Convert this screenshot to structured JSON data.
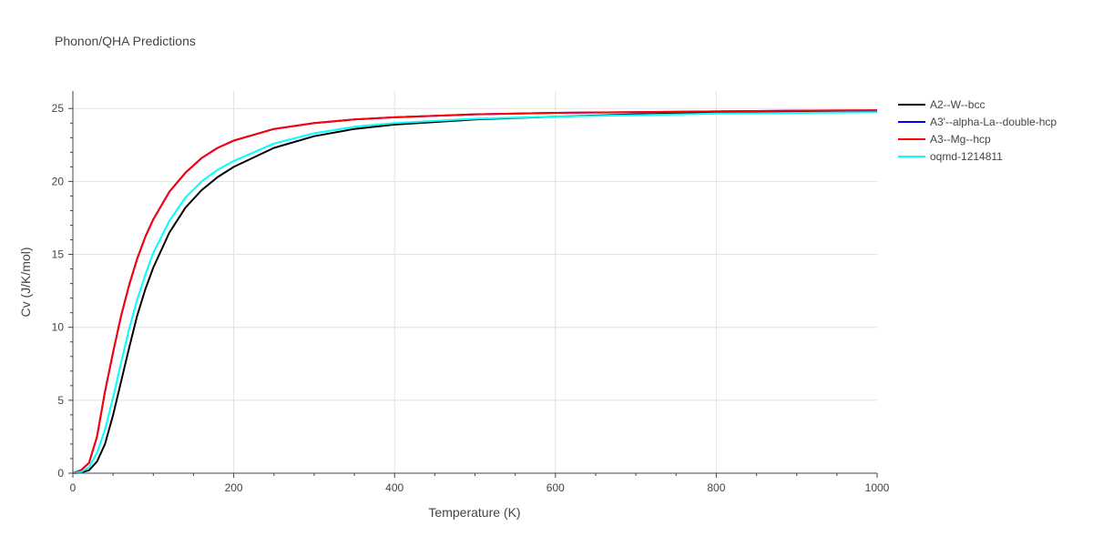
{
  "chart_data": {
    "type": "line",
    "title": "Phonon/QHA Predictions",
    "xlabel": "Temperature (K)",
    "ylabel": "Cv (J/K/mol)",
    "xlim": [
      0,
      1000
    ],
    "ylim": [
      0,
      26.2
    ],
    "x_ticks": [
      0,
      200,
      400,
      600,
      800,
      1000
    ],
    "y_ticks": [
      0,
      5,
      10,
      15,
      20,
      25
    ],
    "x_tick_labels": [
      "0",
      "200",
      "400",
      "600",
      "800",
      "1000"
    ],
    "y_tick_labels": [
      "0",
      "5",
      "10",
      "15",
      "20",
      "25"
    ],
    "grid": true,
    "legend_position": "top-right",
    "series": [
      {
        "name": "A2--W--bcc",
        "color": "#000000",
        "x": [
          0,
          10,
          20,
          30,
          40,
          50,
          60,
          70,
          80,
          90,
          100,
          120,
          140,
          160,
          180,
          200,
          250,
          300,
          350,
          400,
          500,
          600,
          700,
          800,
          900,
          1000
        ],
        "y": [
          0,
          0.05,
          0.2,
          0.8,
          2.0,
          4.0,
          6.3,
          8.6,
          10.8,
          12.6,
          14.1,
          16.5,
          18.2,
          19.4,
          20.3,
          21.0,
          22.3,
          23.1,
          23.6,
          23.9,
          24.25,
          24.45,
          24.6,
          24.7,
          24.75,
          24.8
        ]
      },
      {
        "name": "A3'--alpha-La--double-hcp",
        "color": "#0000ff",
        "x": [
          0,
          10,
          20,
          30,
          40,
          50,
          60,
          70,
          80,
          90,
          100,
          120,
          140,
          160,
          180,
          200,
          250,
          300,
          350,
          400,
          500,
          600,
          700,
          800,
          900,
          1000
        ],
        "y": [
          0,
          0.2,
          0.7,
          2.5,
          5.6,
          8.3,
          10.8,
          12.9,
          14.7,
          16.2,
          17.4,
          19.3,
          20.6,
          21.6,
          22.3,
          22.8,
          23.6,
          24.0,
          24.25,
          24.4,
          24.6,
          24.7,
          24.75,
          24.8,
          24.85,
          24.87
        ]
      },
      {
        "name": "A3--Mg--hcp",
        "color": "#ff0000",
        "x": [
          0,
          10,
          20,
          30,
          40,
          50,
          60,
          70,
          80,
          90,
          100,
          120,
          140,
          160,
          180,
          200,
          250,
          300,
          350,
          400,
          500,
          600,
          700,
          800,
          900,
          1000
        ],
        "y": [
          0,
          0.2,
          0.7,
          2.5,
          5.6,
          8.3,
          10.8,
          12.9,
          14.7,
          16.2,
          17.4,
          19.3,
          20.6,
          21.6,
          22.3,
          22.8,
          23.6,
          24.0,
          24.25,
          24.4,
          24.6,
          24.7,
          24.75,
          24.8,
          24.85,
          24.87
        ]
      },
      {
        "name": "oqmd-1214811",
        "color": "#00ffff",
        "x": [
          0,
          10,
          20,
          30,
          40,
          50,
          60,
          70,
          80,
          90,
          100,
          120,
          140,
          160,
          180,
          200,
          250,
          300,
          350,
          400,
          500,
          600,
          700,
          800,
          900,
          1000
        ],
        "y": [
          0,
          0.08,
          0.4,
          1.4,
          3.0,
          5.2,
          7.6,
          9.9,
          11.9,
          13.6,
          15.1,
          17.3,
          18.9,
          20.0,
          20.8,
          21.4,
          22.6,
          23.3,
          23.75,
          24.0,
          24.3,
          24.45,
          24.55,
          24.65,
          24.7,
          24.75
        ]
      }
    ]
  }
}
